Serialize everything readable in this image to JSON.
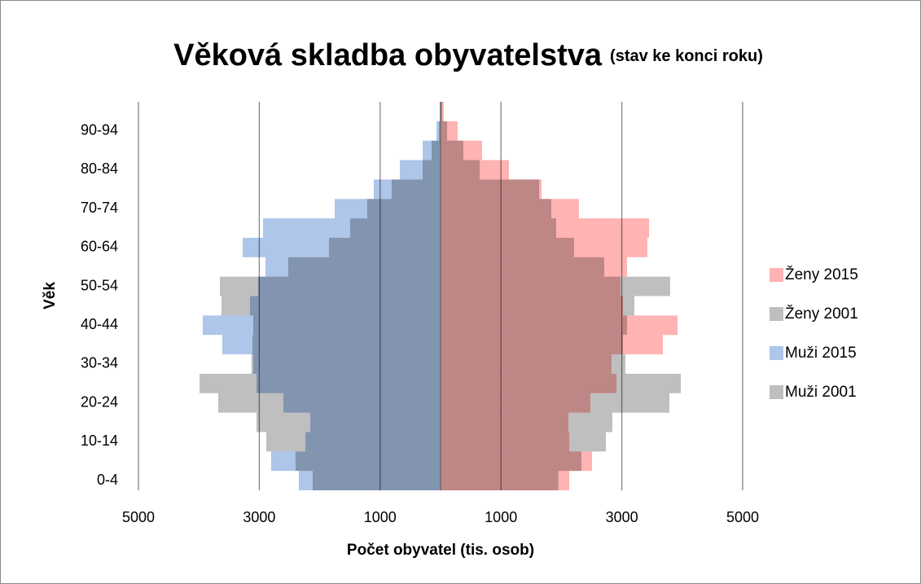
{
  "chart_data": {
    "type": "pyramid",
    "title": "Věková skladba obyvatelstva",
    "subtitle": "(stav ke konci roku)",
    "x_label": "Počet obyvatel (tis. osob)",
    "y_label": "Věk",
    "categories": [
      "0-4",
      null,
      "10-14",
      null,
      "20-24",
      null,
      "30-34",
      null,
      "40-44",
      null,
      "50-54",
      null,
      "60-64",
      null,
      "70-74",
      null,
      "80-84",
      null,
      "90-94",
      null
    ],
    "series": [
      {
        "name": "Muži 2001",
        "color": "#bfbfbf",
        "values": [
          -2116,
          -2400,
          -2884,
          -3046,
          -3679,
          -3989,
          -3130,
          -3113,
          -3100,
          -3625,
          -3652,
          -2520,
          -1846,
          -1496,
          -1213,
          -809,
          -296,
          -148,
          -27,
          -10
        ]
      },
      {
        "name": "Muži 2015",
        "color": "#adc6ea",
        "values": [
          -2345,
          -2803,
          -2237,
          -2156,
          -2601,
          -3046,
          -3100,
          -3612,
          -3935,
          -3154,
          -3019,
          -2898,
          -3275,
          -2938,
          -1752,
          -1105,
          -674,
          -296,
          -67,
          -13
        ]
      },
      {
        "name": "Ženy 2001",
        "color": "#bfbfbf",
        "values": [
          1950,
          2332,
          2736,
          2844,
          3787,
          3976,
          3059,
          3019,
          3086,
          3208,
          3800,
          2709,
          2210,
          1914,
          1833,
          1631,
          647,
          377,
          108,
          27
        ]
      },
      {
        "name": "Ženy 2015",
        "color": "#ffb3b3",
        "values": [
          2130,
          2507,
          2130,
          2116,
          2480,
          2911,
          2830,
          3679,
          3922,
          3019,
          2978,
          3086,
          3423,
          3450,
          2291,
          1671,
          1132,
          687,
          283,
          54
        ]
      }
    ],
    "xlim": [
      -5000,
      5000
    ],
    "xticks": [
      {
        "value": -5000,
        "label": "5000"
      },
      {
        "value": -3000,
        "label": "3000"
      },
      {
        "value": -1000,
        "label": "1000"
      },
      1000,
      3000,
      5000
    ],
    "grid": true,
    "legend": "right"
  }
}
